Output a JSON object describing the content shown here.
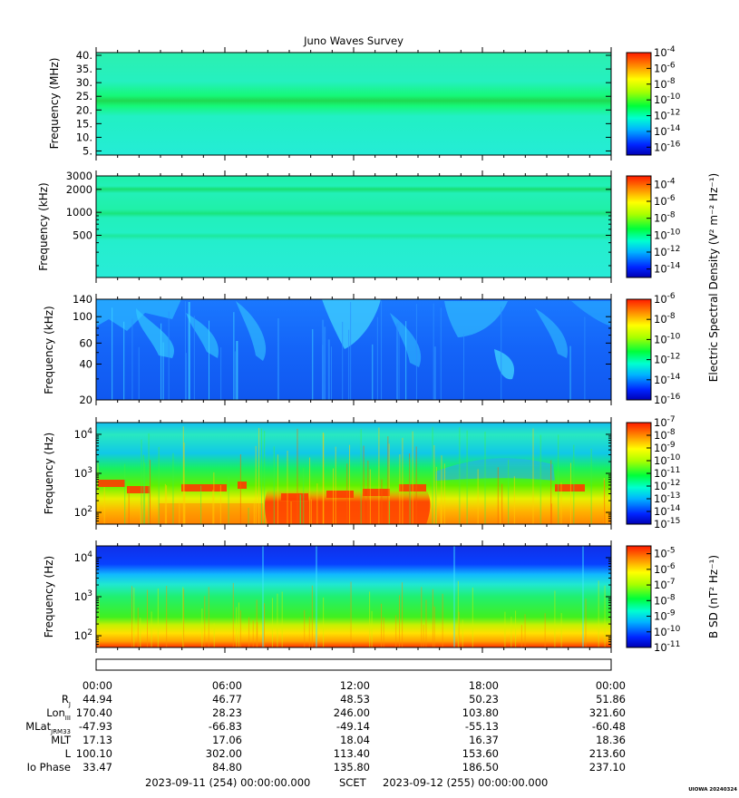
{
  "title": "Juno Waves Survey",
  "footer_stamp": "UIOWA 20240324",
  "colorbar_labels": {
    "electric": "Electric Spectral Density (V² m⁻² Hz⁻¹)",
    "magnetic": "B SD (nT² Hz⁻¹)"
  },
  "chart_data": [
    {
      "type": "heatmap",
      "ylabel": "Frequency (MHz)",
      "y_scale": "linear",
      "ylim": [
        3.5,
        41
      ],
      "y_ticks": [
        5,
        10,
        15,
        20,
        25,
        30,
        35,
        40
      ],
      "y_tick_labels": [
        "5.",
        "10.",
        "15.",
        "20.",
        "25.",
        "30.",
        "35.",
        "40."
      ],
      "colorbar": {
        "scale": "log",
        "range_exp": [
          -17,
          -4
        ],
        "labeled_exponents": [
          -16,
          -14,
          -12,
          -10,
          -8,
          -6,
          -4
        ]
      },
      "features": "Nearly uniform cyan-green background with a bright green narrow band near 21 MHz."
    },
    {
      "type": "heatmap",
      "ylabel": "Frequency (kHz)",
      "y_scale": "log",
      "ylim": [
        140,
        3000
      ],
      "y_ticks": [
        500,
        1000,
        2000,
        3000
      ],
      "y_tick_labels": [
        "500",
        "1000",
        "2000",
        "3000"
      ],
      "colorbar": {
        "scale": "log",
        "range_exp": [
          -15,
          -3
        ],
        "labeled_exponents": [
          -14,
          -12,
          -10,
          -8,
          -6,
          -4
        ]
      },
      "features": "Uniform cyan-green with faint green bands near 2000, 1000 and 500 kHz."
    },
    {
      "type": "heatmap",
      "ylabel": "Frequency (kHz)",
      "y_scale": "log",
      "ylim": [
        20,
        140
      ],
      "y_ticks": [
        20,
        40,
        60,
        100,
        140
      ],
      "y_tick_labels": [
        "20",
        "40",
        "60",
        "100",
        "140"
      ],
      "colorbar": {
        "scale": "log",
        "range_exp": [
          -16,
          -6
        ],
        "labeled_exponents": [
          -16,
          -14,
          -12,
          -10,
          -8,
          -6
        ]
      },
      "features": "Blue background with patchy light-blue emission at the upper frequencies and thin vertical streaks."
    },
    {
      "type": "heatmap",
      "ylabel": "Frequency (Hz)",
      "y_scale": "log",
      "ylim": [
        50,
        20000
      ],
      "y_ticks": [
        100,
        1000,
        10000
      ],
      "y_tick_labels": [
        "10^2",
        "10^3",
        "10^4"
      ],
      "colorbar": {
        "scale": "log",
        "range_exp": [
          -15,
          -7
        ],
        "labeled_exponents": [
          -15,
          -14,
          -13,
          -12,
          -11,
          -10,
          -9,
          -8,
          -7
        ]
      },
      "features": "Blue/cyan above ~2 kHz, green mid band, red/orange emission below ~500 Hz strongest mid-interval; orange-red narrow band near 300-400 Hz."
    },
    {
      "type": "heatmap",
      "ylabel": "Frequency (Hz)",
      "y_scale": "log",
      "ylim": [
        50,
        20000
      ],
      "y_ticks": [
        100,
        1000,
        10000
      ],
      "y_tick_labels": [
        "10^2",
        "10^3",
        "10^4"
      ],
      "colorbar": {
        "scale": "log",
        "range_exp": [
          -11,
          -4.5
        ],
        "labeled_exponents": [
          -11,
          -10,
          -9,
          -8,
          -7,
          -6,
          -5
        ]
      },
      "features": "Blue above ~3 kHz, cyan-green mid band, yellow-orange below ~150 Hz with red at the lowest frequencies."
    }
  ],
  "ephemeris": {
    "times": [
      "00:00",
      "06:00",
      "12:00",
      "18:00",
      "00:00"
    ],
    "rows": [
      {
        "label": "R",
        "label_sub": "J",
        "values": [
          "44.94",
          "46.77",
          "48.53",
          "50.23",
          "51.86"
        ]
      },
      {
        "label": "Lon",
        "label_sub": "III",
        "values": [
          "170.40",
          "28.23",
          "246.00",
          "103.80",
          "321.60"
        ]
      },
      {
        "label": "MLat",
        "label_sub": "JRM33",
        "values": [
          "-47.93",
          "-66.83",
          "-49.14",
          "-55.13",
          "-60.48"
        ]
      },
      {
        "label": "MLT",
        "label_sub": "",
        "values": [
          "17.13",
          "17.06",
          "18.04",
          "16.37",
          "18.36"
        ]
      },
      {
        "label": "L",
        "label_sub": "",
        "values": [
          "100.10",
          "302.00",
          "113.40",
          "153.60",
          "213.60"
        ]
      },
      {
        "label": "Io Phase",
        "label_sub": "",
        "values": [
          "33.47",
          "84.80",
          "135.80",
          "186.50",
          "237.10"
        ]
      }
    ],
    "span": {
      "start": "2023-09-11 (254) 00:00:00.000",
      "label": "SCET",
      "end": "2023-09-12 (255) 00:00:00.000"
    }
  }
}
